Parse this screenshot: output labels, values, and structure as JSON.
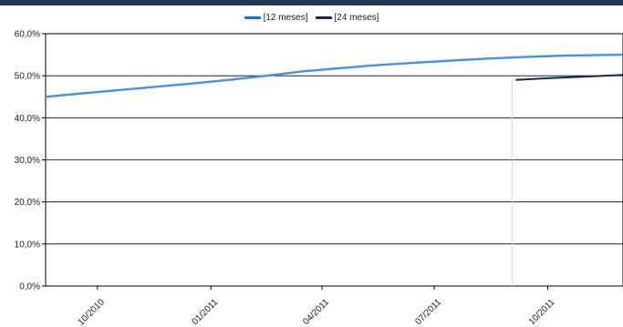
{
  "header": {
    "accent": "#1f3752"
  },
  "chart_data": {
    "type": "line",
    "title": "",
    "xlabel": "",
    "ylabel": "",
    "ylim": [
      0,
      60
    ],
    "y_ticks": [
      "0,0%",
      "10,0%",
      "20,0%",
      "30,0%",
      "40,0%",
      "50,0%",
      "60,0%"
    ],
    "x_tick_labels": [
      "10/2010",
      "01/2011",
      "04/2011",
      "07/2011",
      "10/2011"
    ],
    "x_range": [
      "2010-08-20",
      "2011-12-01"
    ],
    "grid": true,
    "legend_position": "top-center",
    "series": [
      {
        "name": "[12 meses]",
        "color": "#4a90e2",
        "legend_color": "#1c6ee8",
        "points": [
          [
            "2010-08-20",
            45.0
          ],
          [
            "2010-09-15",
            45.7
          ],
          [
            "2010-10-15",
            46.5
          ],
          [
            "2010-11-15",
            47.3
          ],
          [
            "2010-12-15",
            48.1
          ],
          [
            "2011-01-15",
            49.0
          ],
          [
            "2011-02-15",
            50.0
          ],
          [
            "2011-03-15",
            51.0
          ],
          [
            "2011-04-15",
            51.8
          ],
          [
            "2011-05-15",
            52.5
          ],
          [
            "2011-06-15",
            53.1
          ],
          [
            "2011-07-15",
            53.6
          ],
          [
            "2011-08-15",
            54.1
          ],
          [
            "2011-09-15",
            54.5
          ],
          [
            "2011-10-15",
            54.8
          ],
          [
            "2011-12-01",
            55.0
          ]
        ]
      },
      {
        "name": "[24 meses]",
        "color": "#0f2c52",
        "legend_color": "#0f2c52",
        "points": [
          [
            "2011-09-05",
            49.0
          ],
          [
            "2011-10-01",
            49.4
          ],
          [
            "2011-11-01",
            49.8
          ],
          [
            "2011-12-01",
            50.2
          ]
        ]
      }
    ]
  }
}
